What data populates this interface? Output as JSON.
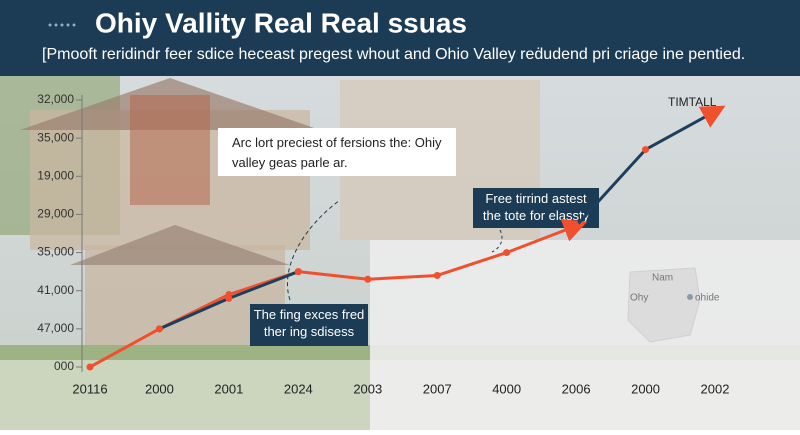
{
  "chart_data": {
    "type": "line",
    "title": "Ohiy Vallity Real Real ssuas",
    "subtitle": "[Pmooft reridindr feer sdice heceast pregest whout and Ohio Valley reḋudend pri criage ine pentied.",
    "categories": [
      "20116",
      "2000",
      "2001",
      "2024",
      "2003",
      "2007",
      "4000",
      "2006",
      "2000",
      "2002"
    ],
    "ylim": [
      0,
      7
    ],
    "yticks": [
      {
        "value": 0,
        "label": "000"
      },
      {
        "value": 1,
        "label": "47,000"
      },
      {
        "value": 2,
        "label": "41,000"
      },
      {
        "value": 3,
        "label": "35,000"
      },
      {
        "value": 4,
        "label": "29,000"
      },
      {
        "value": 5,
        "label": "19,000"
      },
      {
        "value": 6,
        "label": "35,000"
      },
      {
        "value": 7,
        "label": "32,000"
      }
    ],
    "series": [
      {
        "color": "#f0502d",
        "values": [
          0,
          1,
          1.9,
          2.5,
          2.3,
          2.4,
          3.0,
          3.7,
          null,
          null
        ]
      },
      {
        "color": "#1d3e5c",
        "values": [
          null,
          1,
          1.8,
          2.5,
          null,
          null,
          null,
          3.7,
          5.7,
          6.7
        ]
      }
    ],
    "series_label": "TIMTALL",
    "annotations": [
      "Arc lort preciest of fersions the: Ohiy valley geas parle ar.",
      "Free tirrind astest the tote for elassty",
      "The fing exces fred ther ing sdisess"
    ],
    "map_labels": [
      "Nam",
      "Ohy",
      "ohide"
    ]
  }
}
